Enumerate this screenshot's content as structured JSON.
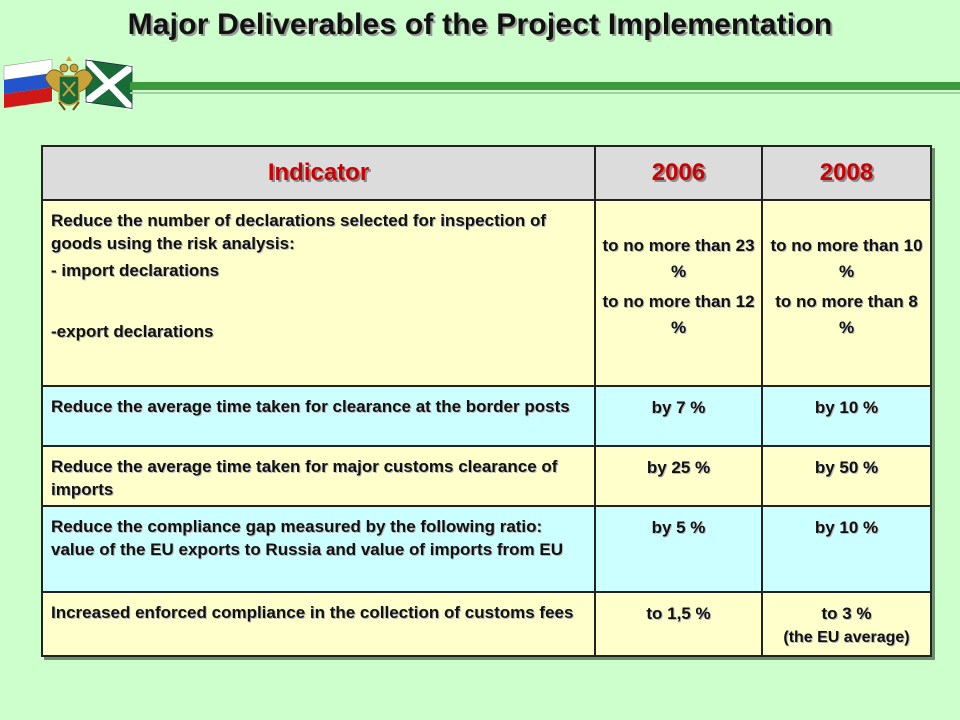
{
  "title": "Major Deliverables of the Project Implementation",
  "colors": {
    "background": "#ccffcc",
    "header_text": "#cc0000",
    "header_bg": "#dcdcdc",
    "row_yellow": "#ffffcc",
    "row_cyan": "#ccffff",
    "rule": "#3c9a3c"
  },
  "emblem": {
    "icon": "russian-customs-emblem-icon"
  },
  "table": {
    "headers": [
      "Indicator",
      "2006",
      "2008"
    ],
    "rows": [
      {
        "indicator": {
          "intro": "Reduce the number of declarations selected for inspection of goods using the risk analysis:",
          "line1": "- import declarations",
          "line2": "-export declarations"
        },
        "v2006": {
          "line1": "to no more than 23 %",
          "line2": "to no more than 12 %"
        },
        "v2008": {
          "line1": "to no more than 10 %",
          "line2": "to no more than 8 %"
        }
      },
      {
        "indicator": "Reduce the average time taken for clearance at the border posts",
        "v2006": "by 7 %",
        "v2008": "by 10 %"
      },
      {
        "indicator": "Reduce the average time taken for major customs clearance of imports",
        "v2006": "by 25 %",
        "v2008": "by 50 %"
      },
      {
        "indicator": "Reduce the compliance gap measured by the following ratio: value of the EU exports to Russia and value of imports from EU",
        "v2006": "by 5 %",
        "v2008": "by 10 %"
      },
      {
        "indicator": "Increased enforced compliance in the collection of customs fees",
        "v2006": "to 1,5 %",
        "v2008": {
          "main": "to 3 %",
          "note": "(the EU average)"
        }
      }
    ]
  }
}
